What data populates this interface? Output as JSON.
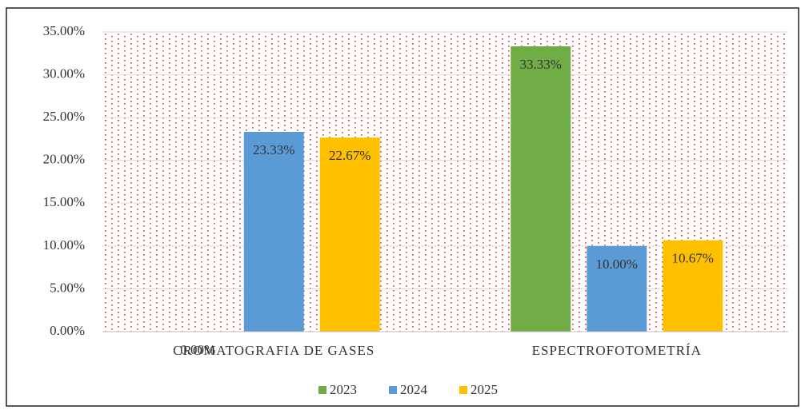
{
  "chart_data": {
    "type": "bar",
    "categories": [
      "CROMATOGRAFIA DE GASES",
      "ESPECTROFOTOMETRÍA"
    ],
    "series": [
      {
        "name": "2023",
        "color": "#70ad47",
        "values": [
          0,
          33.33
        ],
        "value_labels": [
          "0.00%",
          "33.33%"
        ]
      },
      {
        "name": "2024",
        "color": "#5b9bd5",
        "values": [
          23.33,
          10
        ],
        "value_labels": [
          "23.33%",
          "10.00%"
        ]
      },
      {
        "name": "2025",
        "color": "#ffc000",
        "values": [
          22.67,
          10.67
        ],
        "value_labels": [
          "22.67%",
          "10.67%"
        ]
      }
    ],
    "ylim": [
      0,
      35
    ],
    "yticks": [
      {
        "value": 0,
        "label": "0.00%"
      },
      {
        "value": 5,
        "label": "5.00%"
      },
      {
        "value": 10,
        "label": "10.00%"
      },
      {
        "value": 15,
        "label": "15.00%"
      },
      {
        "value": 20,
        "label": "20.00%"
      },
      {
        "value": 25,
        "label": "25.00%"
      },
      {
        "value": 30,
        "label": "30.00%"
      },
      {
        "value": 35,
        "label": "35.00%"
      }
    ],
    "grid": true,
    "legend": "bottom"
  }
}
